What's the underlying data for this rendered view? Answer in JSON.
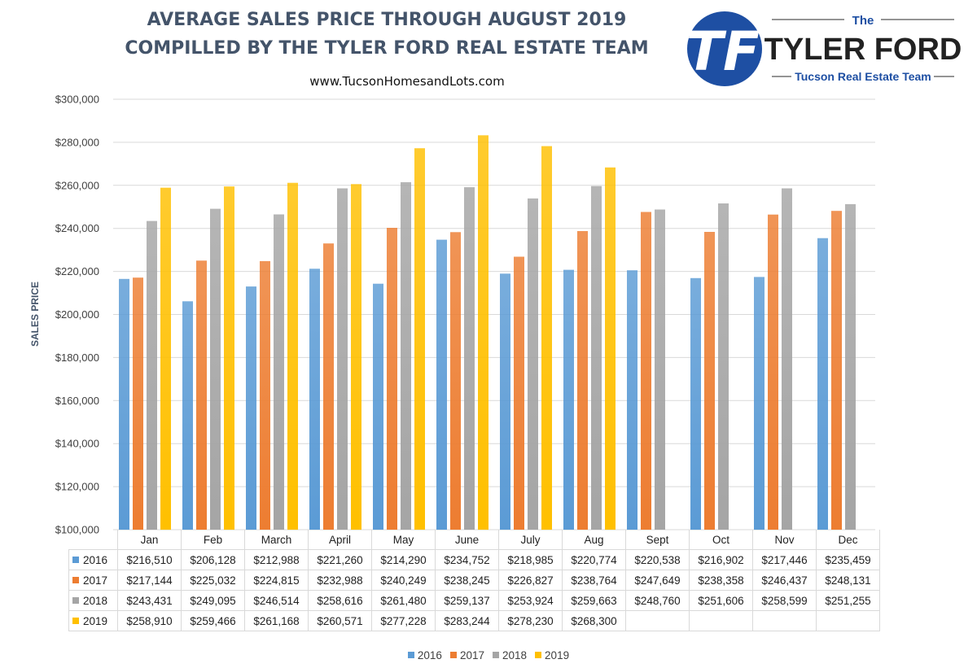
{
  "header": {
    "title_line1": "AVERAGE SALES PRICE THROUGH AUGUST 2019",
    "title_line2": "COMPILLED BY THE TYLER FORD REAL ESTATE TEAM",
    "website": "www.TucsonHomesandLots.com"
  },
  "logo": {
    "monogram": "TF",
    "the": "The",
    "name": "TYLER FORD",
    "tagline": "Tucson Real Estate Team",
    "colors": {
      "circle": "#1e4fa3",
      "text": "#222222",
      "accent": "#1e4fa3"
    }
  },
  "chart_data": {
    "type": "bar",
    "title": "AVERAGE SALES PRICE THROUGH AUGUST 2019",
    "ylabel": "SALES PRICE",
    "xlabel": "",
    "ylim": [
      100000,
      300000
    ],
    "ytick_step": 20000,
    "yticks": [
      "$100,000",
      "$120,000",
      "$140,000",
      "$160,000",
      "$180,000",
      "$200,000",
      "$220,000",
      "$240,000",
      "$260,000",
      "$280,000",
      "$300,000"
    ],
    "grid": true,
    "legend": "bottom",
    "categories": [
      "Jan",
      "Feb",
      "March",
      "April",
      "May",
      "June",
      "July",
      "Aug",
      "Sept",
      "Oct",
      "Nov",
      "Dec"
    ],
    "series": [
      {
        "name": "2016",
        "color": "#5b9bd5",
        "values": [
          216510,
          206128,
          212988,
          221260,
          214290,
          234752,
          218985,
          220774,
          220538,
          216902,
          217446,
          235459
        ],
        "labels": [
          "$216,510",
          "$206,128",
          "$212,988",
          "$221,260",
          "$214,290",
          "$234,752",
          "$218,985",
          "$220,774",
          "$220,538",
          "$216,902",
          "$217,446",
          "$235,459"
        ]
      },
      {
        "name": "2017",
        "color": "#ed7d31",
        "values": [
          217144,
          225032,
          224815,
          232988,
          240249,
          238245,
          226827,
          238764,
          247649,
          238358,
          246437,
          248131
        ],
        "labels": [
          "$217,144",
          "$225,032",
          "$224,815",
          "$232,988",
          "$240,249",
          "$238,245",
          "$226,827",
          "$238,764",
          "$247,649",
          "$238,358",
          "$246,437",
          "$248,131"
        ]
      },
      {
        "name": "2018",
        "color": "#a5a5a5",
        "values": [
          243431,
          249095,
          246514,
          258616,
          261480,
          259137,
          253924,
          259663,
          248760,
          251606,
          258599,
          251255
        ],
        "labels": [
          "$243,431",
          "$249,095",
          "$246,514",
          "$258,616",
          "$261,480",
          "$259,137",
          "$253,924",
          "$259,663",
          "$248,760",
          "$251,606",
          "$258,599",
          "$251,255"
        ]
      },
      {
        "name": "2019",
        "color": "#ffc000",
        "values": [
          258910,
          259466,
          261168,
          260571,
          277228,
          283244,
          278230,
          268300,
          null,
          null,
          null,
          null
        ],
        "labels": [
          "$258,910",
          "$259,466",
          "$261,168",
          "$260,571",
          "$277,228",
          "$283,244",
          "$278,230",
          "$268,300",
          "",
          "",
          "",
          ""
        ]
      }
    ]
  }
}
